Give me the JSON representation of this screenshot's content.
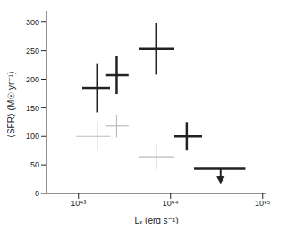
{
  "chart_data": {
    "type": "scatter",
    "x_label": "Lₓ (erg s⁻¹)",
    "y_label": "⟨SFR⟩ (M☉ yr⁻¹)",
    "log": "x",
    "xlim": [
      4.5e+42,
      1.1e+45
    ],
    "xticks": [
      {
        "value": 1e+43,
        "label": "10⁴³"
      },
      {
        "value": 1e+44,
        "label": "10⁴⁴"
      },
      {
        "value": 1e+45,
        "label": "10⁴⁵"
      }
    ],
    "ylim": [
      0,
      320
    ],
    "yticks": [
      0,
      50,
      100,
      150,
      200,
      250,
      300
    ],
    "series": [
      {
        "color": "#bbbbbb",
        "marker": "cross",
        "x": [
          1.6e+43,
          2.6e+43,
          7e+43
        ],
        "values": [
          100,
          118,
          64
        ],
        "x_err_minus": [
          6.5e+42,
          6e+42,
          2.5e+43
        ],
        "x_err_plus": [
          6e+42,
          9e+42,
          4e+43
        ],
        "y_err": [
          25,
          20,
          22
        ]
      },
      {
        "color": "#222222",
        "marker": "cross",
        "x": [
          1.6e+43,
          2.6e+43,
          7e+43,
          1.5e+44
        ],
        "values": [
          185,
          207,
          253,
          100
        ],
        "x_err_minus": [
          5e+42,
          6e+42,
          2.5e+43,
          4e+43
        ],
        "x_err_plus": [
          6e+42,
          9e+42,
          4e+43,
          7e+43
        ],
        "y_err": [
          43,
          33,
          45,
          25
        ]
      },
      {
        "color": "#222222",
        "marker": "down-arrow",
        "x": [
          3.5e+44
        ],
        "values": [
          43
        ],
        "x_err_minus": [
          1.7e+44
        ],
        "x_err_plus": [
          3e+44
        ]
      }
    ]
  }
}
